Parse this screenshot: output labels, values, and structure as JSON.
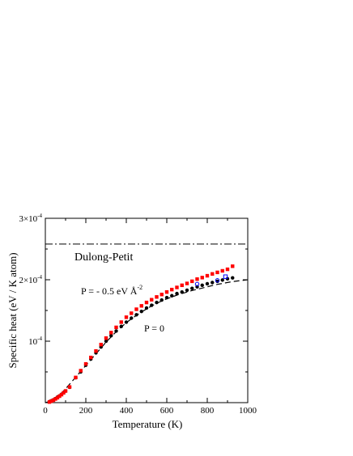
{
  "chart_data": {
    "type": "scatter",
    "title": "",
    "xlabel": "Temperature  (K)",
    "ylabel": "Specific  heat  (eV / K atom)",
    "xlim": [
      0,
      1000
    ],
    "ylim": [
      0,
      0.0003
    ],
    "x_ticks": [
      {
        "value": 0,
        "label": "0"
      },
      {
        "value": 200,
        "label": "200"
      },
      {
        "value": 400,
        "label": "400"
      },
      {
        "value": 600,
        "label": "600"
      },
      {
        "value": 800,
        "label": "800"
      },
      {
        "value": 1000,
        "label": "1000"
      }
    ],
    "y_ticks": [
      {
        "value": 0.0001,
        "mantissa": "10",
        "exponent": "-4"
      },
      {
        "value": 0.0002,
        "mantissa": "2×10",
        "exponent": "-4"
      },
      {
        "value": 0.0003,
        "mantissa": "3×10",
        "exponent": "-4"
      }
    ],
    "grid": false,
    "reference_lines": [
      {
        "label": "Dulong-Petit",
        "y": 0.000258,
        "style": "dash-dot"
      }
    ],
    "series": [
      {
        "label": "P = 0",
        "marker": "filled-circle",
        "color": "#000000",
        "x": [
          20,
          30,
          40,
          50,
          60,
          70,
          80,
          90,
          100,
          120,
          150,
          175,
          200,
          225,
          250,
          275,
          300,
          325,
          350,
          375,
          400,
          425,
          450,
          475,
          500,
          525,
          550,
          575,
          600,
          625,
          650,
          675,
          700,
          725,
          750,
          775,
          800,
          825,
          850,
          875,
          900,
          925
        ],
        "y": [
          1.5e-06,
          3e-06,
          4.5e-06,
          6.5e-06,
          9e-06,
          1.1e-05,
          1.35e-05,
          1.6e-05,
          1.9e-05,
          2.5e-05,
          4.05e-05,
          5e-05,
          6.1e-05,
          7.1e-05,
          8.1e-05,
          9.05e-05,
          0.0001,
          0.000109,
          0.0001165,
          0.000124,
          0.000131,
          0.0001375,
          0.000143,
          0.0001485,
          0.000154,
          0.0001585,
          0.000163,
          0.000167,
          0.000171,
          0.000174,
          0.0001775,
          0.00018,
          0.000183,
          0.000186,
          0.0001885,
          0.000191,
          0.0001935,
          0.0001955,
          0.0001975,
          0.0001995,
          0.0002015,
          0.000203
        ]
      },
      {
        "label": "P = - 0.5  eV Å-2",
        "label_main": "P = - 0.5  eV Å",
        "label_exp": "-2",
        "marker": "filled-square",
        "color": "#ff0000",
        "x": [
          20,
          30,
          40,
          50,
          60,
          70,
          80,
          90,
          100,
          120,
          150,
          175,
          200,
          225,
          250,
          275,
          300,
          325,
          350,
          375,
          400,
          425,
          450,
          475,
          500,
          525,
          550,
          575,
          600,
          625,
          650,
          675,
          700,
          725,
          750,
          775,
          800,
          825,
          850,
          875,
          900,
          925
        ],
        "y": [
          1e-06,
          2.5e-06,
          4e-06,
          6e-06,
          8e-06,
          1.05e-05,
          1.3e-05,
          1.6e-05,
          1.9e-05,
          2.55e-05,
          4.1e-05,
          5.2e-05,
          6.3e-05,
          7.35e-05,
          8.4e-05,
          9.45e-05,
          0.000105,
          0.000114,
          0.0001225,
          0.000131,
          0.000139,
          0.0001455,
          0.000152,
          0.0001575,
          0.000163,
          0.0001675,
          0.000172,
          0.000176,
          0.00018,
          0.000184,
          0.0001875,
          0.000191,
          0.000194,
          0.0001975,
          0.000201,
          0.0002035,
          0.0002065,
          0.0002095,
          0.000212,
          0.0002145,
          0.000217,
          0.000222
        ]
      },
      {
        "label": "open circles",
        "marker": "open-circle",
        "color": "#0000ff",
        "x": [
          750,
          850
        ],
        "y": [
          0.000193,
          0.000199
        ]
      },
      {
        "label": "open squares",
        "marker": "open-square",
        "color": "#0000ff",
        "x": [
          890
        ],
        "y": [
          0.000205
        ]
      },
      {
        "label": "harmonic model",
        "marker": "none",
        "line": "dashed",
        "color": "#000000",
        "x": [
          0,
          25,
          50,
          75,
          100,
          125,
          150,
          175,
          200,
          225,
          250,
          275,
          300,
          325,
          350,
          375,
          400,
          425,
          450,
          475,
          500,
          525,
          550,
          575,
          600,
          625,
          650,
          675,
          700,
          725,
          750,
          775,
          800,
          825,
          850,
          875,
          900,
          925,
          950,
          975,
          1000
        ],
        "y": [
          0,
          2e-06,
          6.5e-06,
          1.35e-05,
          2.25e-05,
          3.2e-05,
          4.15e-05,
          5.1e-05,
          6.05e-05,
          7e-05,
          7.95e-05,
          8.9e-05,
          9.85e-05,
          0.000107,
          0.0001155,
          0.000123,
          0.00013,
          0.0001365,
          0.000142,
          0.0001475,
          0.0001525,
          0.0001575,
          0.0001615,
          0.0001655,
          0.000169,
          0.000172,
          0.000175,
          0.0001775,
          0.00018,
          0.0001825,
          0.0001845,
          0.0001865,
          0.0001885,
          0.0001905,
          0.0001925,
          0.000194,
          0.0001955,
          0.000197,
          0.000198,
          0.000199,
          0.0002
        ]
      }
    ],
    "annotations": [
      {
        "text": "Dulong-Petit",
        "x": 160,
        "y": 0.000237
      },
      {
        "text": "P = 0",
        "x": 480,
        "y": 9.2e-05
      }
    ]
  }
}
